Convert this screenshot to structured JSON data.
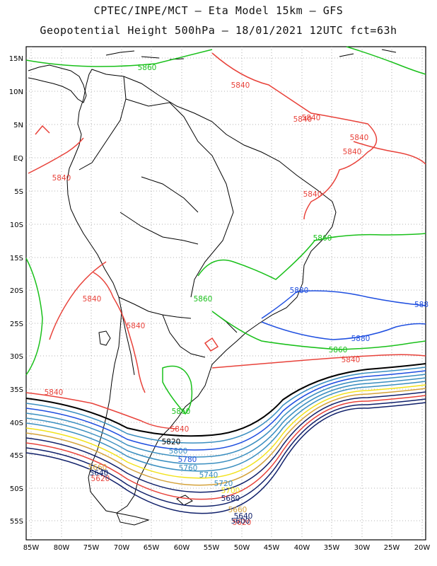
{
  "header": {
    "line1": "CPTEC/INPE/MCT –  Eta Model 15km – GFS",
    "line2": "Geopotential Height 500hPa – 18/01/2021 12UTC fct=63h"
  },
  "axes": {
    "lon_labels": [
      "85W",
      "80W",
      "75W",
      "70W",
      "65W",
      "60W",
      "55W",
      "50W",
      "45W",
      "40W",
      "35W",
      "30W",
      "25W",
      "20W"
    ],
    "lat_labels": [
      "15N",
      "10N",
      "5N",
      "EQ",
      "5S",
      "10S",
      "15S",
      "20S",
      "25S",
      "30S",
      "35S",
      "40S",
      "45S",
      "50S",
      "55S"
    ]
  },
  "colors": {
    "red": "#e8423a",
    "green": "#19c01a",
    "blue": "#1f4fe0",
    "black": "#000000",
    "navy": "#10206a",
    "steel": "#3b8fc0",
    "teal": "#2aa8b0",
    "yellow": "#f2e21a",
    "gold": "#d4a23a",
    "grid": "#9a9a9a"
  },
  "contours": {
    "red_labels": [
      "5840",
      "5840",
      "5840",
      "5840",
      "5840",
      "5840",
      "5840",
      "5840",
      "5840",
      "5840",
      "5840",
      "5840"
    ],
    "green_labels": [
      "5860",
      "5860",
      "5860",
      "5860",
      "5860"
    ],
    "blue_labels": [
      "5880",
      "5880",
      "588"
    ],
    "south_labels": [
      "5820",
      "5800",
      "5780",
      "5760",
      "5740",
      "5720",
      "5700",
      "5680",
      "5660",
      "5640",
      "5620",
      "5600"
    ],
    "west_labels": [
      "5660",
      "5640",
      "5620"
    ]
  }
}
